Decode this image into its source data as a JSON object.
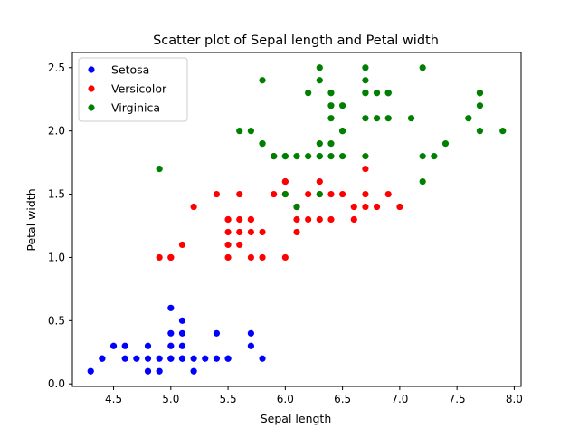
{
  "chart_data": {
    "type": "scatter",
    "title": "Scatter plot of Sepal length and Petal width",
    "xlabel": "Sepal length",
    "ylabel": "Petal width",
    "xlim": [
      4.14,
      8.06
    ],
    "ylim": [
      -0.02,
      2.62
    ],
    "xticks": [
      4.5,
      5.0,
      5.5,
      6.0,
      6.5,
      7.0,
      7.5,
      8.0
    ],
    "xtick_labels": [
      "4.5",
      "5.0",
      "5.5",
      "6.0",
      "6.5",
      "7.0",
      "7.5",
      "8.0"
    ],
    "yticks": [
      0.0,
      0.5,
      1.0,
      1.5,
      2.0,
      2.5
    ],
    "ytick_labels": [
      "0.0",
      "0.5",
      "1.0",
      "1.5",
      "2.0",
      "2.5"
    ],
    "grid": false,
    "legend_position": "top-left",
    "series": [
      {
        "name": "Setosa",
        "color": "#0000ff",
        "x": [
          4.3,
          4.4,
          4.4,
          4.5,
          4.6,
          4.6,
          4.7,
          4.8,
          4.8,
          4.8,
          4.9,
          4.9,
          5.0,
          5.0,
          5.0,
          5.0,
          5.0,
          5.1,
          5.1,
          5.1,
          5.1,
          5.1,
          5.2,
          5.2,
          5.3,
          5.4,
          5.4,
          5.5,
          5.5,
          5.7,
          5.7,
          5.8
        ],
        "y": [
          0.1,
          0.2,
          0.2,
          0.3,
          0.3,
          0.2,
          0.2,
          0.1,
          0.2,
          0.3,
          0.1,
          0.2,
          0.2,
          0.3,
          0.4,
          0.6,
          0.2,
          0.2,
          0.3,
          0.4,
          0.5,
          0.2,
          0.1,
          0.2,
          0.2,
          0.2,
          0.4,
          0.2,
          0.2,
          0.3,
          0.4,
          0.2
        ]
      },
      {
        "name": "Versicolor",
        "color": "#ff0000",
        "x": [
          4.9,
          5.0,
          5.0,
          5.1,
          5.2,
          5.4,
          5.5,
          5.5,
          5.5,
          5.5,
          5.5,
          5.6,
          5.6,
          5.6,
          5.6,
          5.7,
          5.7,
          5.7,
          5.7,
          5.8,
          5.8,
          5.9,
          5.9,
          6.0,
          6.0,
          6.0,
          6.0,
          6.1,
          6.1,
          6.1,
          6.1,
          6.2,
          6.2,
          6.3,
          6.3,
          6.3,
          6.4,
          6.4,
          6.5,
          6.6,
          6.6,
          6.7,
          6.7,
          6.7,
          6.8,
          6.9,
          7.0
        ],
        "y": [
          1.0,
          1.0,
          1.0,
          1.1,
          1.4,
          1.5,
          1.0,
          1.1,
          1.2,
          1.3,
          1.3,
          1.1,
          1.2,
          1.3,
          1.5,
          1.0,
          1.2,
          1.3,
          1.3,
          1.0,
          1.2,
          1.5,
          1.8,
          1.0,
          1.5,
          1.6,
          1.6,
          1.2,
          1.3,
          1.4,
          1.4,
          1.3,
          1.5,
          1.3,
          1.5,
          1.6,
          1.3,
          1.5,
          1.5,
          1.3,
          1.4,
          1.4,
          1.5,
          1.7,
          1.4,
          1.5,
          1.4
        ]
      },
      {
        "name": "Virginica",
        "color": "#008000",
        "x": [
          4.9,
          5.6,
          5.7,
          5.8,
          5.8,
          5.8,
          5.9,
          6.0,
          6.0,
          6.0,
          6.1,
          6.1,
          6.2,
          6.2,
          6.3,
          6.3,
          6.3,
          6.3,
          6.3,
          6.3,
          6.4,
          6.4,
          6.4,
          6.4,
          6.4,
          6.5,
          6.5,
          6.5,
          6.5,
          6.7,
          6.7,
          6.7,
          6.7,
          6.7,
          6.7,
          6.8,
          6.8,
          6.9,
          6.9,
          6.9,
          7.1,
          7.2,
          7.2,
          7.2,
          7.3,
          7.4,
          7.6,
          7.7,
          7.7,
          7.7,
          7.7,
          7.9
        ],
        "y": [
          1.7,
          2.0,
          2.0,
          1.9,
          2.4,
          1.9,
          1.8,
          1.8,
          1.5,
          1.8,
          1.8,
          1.4,
          1.8,
          2.3,
          1.8,
          1.9,
          2.4,
          2.5,
          1.5,
          1.8,
          1.8,
          1.9,
          2.1,
          2.2,
          2.3,
          1.8,
          2.0,
          2.2,
          2.0,
          1.8,
          2.1,
          2.3,
          2.4,
          2.5,
          2.3,
          2.1,
          2.3,
          2.1,
          2.3,
          2.3,
          2.1,
          1.6,
          1.8,
          2.5,
          1.8,
          1.9,
          2.1,
          2.0,
          2.2,
          2.3,
          2.3,
          2.0
        ]
      }
    ]
  }
}
